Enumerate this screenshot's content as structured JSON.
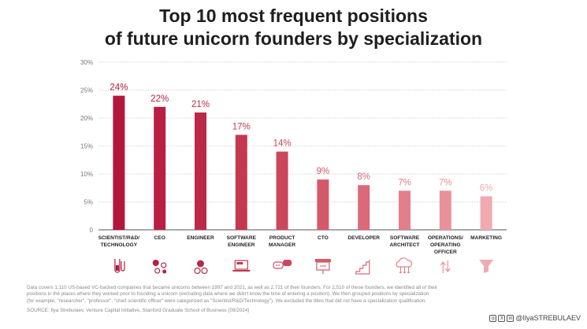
{
  "title_line1": "Top 10 most frequent positions",
  "title_line2": "of future unicorn founders by specialization",
  "chart_data": {
    "type": "bar",
    "categories": [
      [
        "SCIENTIST/R&D/",
        "TECHNOLOGY"
      ],
      [
        "CEO"
      ],
      [
        "ENGINEER"
      ],
      [
        "SOFTWARE",
        "ENGINEER"
      ],
      [
        "PRODUCT",
        "MANAGER"
      ],
      [
        "CTO"
      ],
      [
        "DEVELOPER"
      ],
      [
        "SOFTWARE",
        "ARCHITECT"
      ],
      [
        "OPERATIONS/",
        "OPERATING",
        "OFFICER"
      ],
      [
        "MARKETING"
      ]
    ],
    "values": [
      24,
      22,
      21,
      17,
      14,
      9,
      8,
      7,
      7,
      6
    ],
    "value_labels": [
      "24%",
      "22%",
      "21%",
      "17%",
      "14%",
      "9%",
      "8%",
      "7%",
      "7%",
      "6%"
    ],
    "y_ticks": [
      0,
      5,
      10,
      15,
      20,
      25,
      30
    ],
    "y_tick_labels": [
      "0",
      "5%",
      "10%",
      "15%",
      "20%",
      "25%",
      "30%"
    ],
    "ylim": [
      0,
      30
    ],
    "grid": true,
    "bar_colors": [
      "#b5173c",
      "#b81f42",
      "#bc2847",
      "#c4394f",
      "#cb475a",
      "#d45a69",
      "#db6979",
      "#e37f8b",
      "#e9929c",
      "#efabb1"
    ],
    "icons": [
      "flask-icon",
      "circles-icon",
      "gears-icon",
      "laptop-icon",
      "chat-icon",
      "board-icon",
      "stairs-icon",
      "cloud-icon",
      "arrows-icon",
      "funnel-icon"
    ]
  },
  "footnote_line1": "Data covers 1,110 US-based VC-backed companies that became unicorns between 1997 and 2021, as well as 2,721 of their founders. For 2,510 of these founders, we identified all of their",
  "footnote_line2": "positions in the places where they worked prior to founding a unicorn (excluding data where we didn't know the time of entering a position). We then grouped positions by specialization",
  "footnote_line3": "(for example, \"researcher\", \"professor\", \"chief scientific officer\" were categorized as \"Scientist/R&D/Technology\"). We excluded the titles that did not have a specialization qualification.",
  "source": "SOURCE: Ilya Strebulaev, Venture Capital Initiative, Stanford Graduate School of Business (09/2024)",
  "credit": "@IlyaSTREBULAEV"
}
